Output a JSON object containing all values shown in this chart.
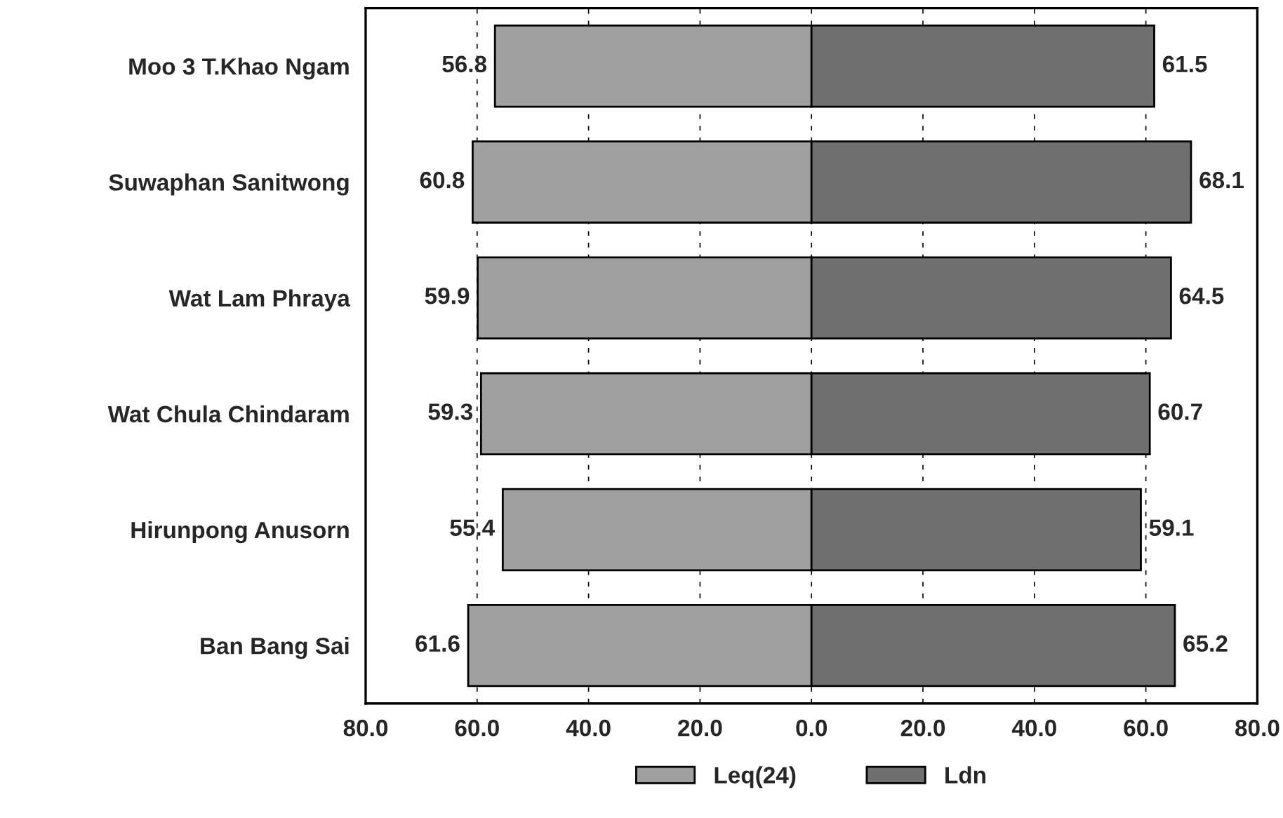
{
  "chart_data": {
    "type": "bar",
    "orientation": "horizontal",
    "categories": [
      "Moo 3 T.Khao Ngam",
      "Suwaphan Sanitwong",
      "Wat Lam Phraya",
      "Wat Chula Chindaram",
      "Hirunpong Anusorn",
      "Ban Bang Sai"
    ],
    "series": [
      {
        "name": "Leq(24)",
        "color": "#a0a0a0",
        "values": [
          56.8,
          60.8,
          59.9,
          59.3,
          55.4,
          61.6
        ],
        "base": [
          -56.8,
          -60.8,
          -59.9,
          -59.3,
          -55.4,
          -61.6
        ],
        "value_labels": [
          "56.8",
          "60.8",
          "59.9",
          "59.3",
          "55.4",
          "61.6"
        ]
      },
      {
        "name": "Ldn",
        "color": "#707070",
        "values": [
          61.5,
          68.1,
          64.5,
          60.7,
          59.1,
          65.2
        ],
        "base": [
          0,
          0,
          0,
          0,
          0,
          0
        ],
        "value_labels": [
          "61.5",
          "68.1",
          "64.5",
          "60.7",
          "59.1",
          "65.2"
        ]
      }
    ],
    "xlim": [
      -80,
      80
    ],
    "xticks": [
      {
        "value": -80,
        "label": "80.0"
      },
      {
        "value": -60,
        "label": "60.0"
      },
      {
        "value": -40,
        "label": "40.0"
      },
      {
        "value": -20,
        "label": "20.0"
      },
      {
        "value": 0,
        "label": "0.0"
      },
      {
        "value": 20,
        "label": "20.0"
      },
      {
        "value": 40,
        "label": "40.0"
      },
      {
        "value": 60,
        "label": "60.0"
      },
      {
        "value": 80,
        "label": "80.0"
      }
    ],
    "grid": "x",
    "legend": "bottom"
  }
}
